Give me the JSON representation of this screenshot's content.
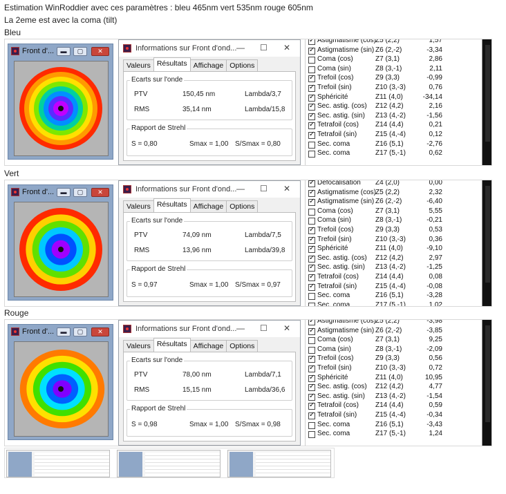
{
  "header": {
    "line1": "Estimation WinRoddier avec ces paramètres : bleu 465nm vert 535nm rouge 605nm",
    "line2": "La 2eme est avec la coma (tilt)"
  },
  "front_window_title": "Front d'...",
  "info_window": {
    "title": "Informations sur Front d'ond...",
    "tabs": [
      "Valeurs",
      "Résultats",
      "Affichage",
      "Options"
    ],
    "ecarts_label": "Ecarts sur l'onde",
    "strehl_label": "Rapport de Strehl",
    "ptv_label": "PTV",
    "rms_label": "RMS",
    "smax_text": "Smax = 1,00"
  },
  "colors": {
    "accent_title": "#8fa7c7",
    "close_red": "#c9463b",
    "list_bg": "#ffffff"
  },
  "panels": [
    {
      "label": "Bleu",
      "ptv_value": "150,45 nm",
      "ptv_lambda": "Lambda/3,7",
      "rms_value": "35,14 nm",
      "rms_lambda": "Lambda/15,8",
      "s_value": "S = 0,80",
      "s_ratio": "S/Smax = 0,80",
      "list": [
        {
          "name": "Astigmatisme (cos)",
          "z": "Z5 (2,2)",
          "value": "1,57",
          "checked": true
        },
        {
          "name": "Astigmatisme (sin)",
          "z": "Z6 (2,-2)",
          "value": "-3,34",
          "checked": true
        },
        {
          "name": "Coma (cos)",
          "z": "Z7 (3,1)",
          "value": "2,86",
          "checked": false
        },
        {
          "name": "Coma (sin)",
          "z": "Z8 (3,-1)",
          "value": "2,11",
          "checked": false
        },
        {
          "name": "Trefoil (cos)",
          "z": "Z9 (3,3)",
          "value": "-0,99",
          "checked": true
        },
        {
          "name": "Trefoil (sin)",
          "z": "Z10 (3,-3)",
          "value": "0,76",
          "checked": true
        },
        {
          "name": "Sphéricité",
          "z": "Z11 (4,0)",
          "value": "-34,14",
          "checked": true
        },
        {
          "name": "Sec. astig. (cos)",
          "z": "Z12 (4,2)",
          "value": "2,16",
          "checked": true
        },
        {
          "name": "Sec. astig. (sin)",
          "z": "Z13 (4,-2)",
          "value": "-1,56",
          "checked": true
        },
        {
          "name": "Tetrafoil (cos)",
          "z": "Z14 (4,4)",
          "value": "0,21",
          "checked": true
        },
        {
          "name": "Tetrafoil (sin)",
          "z": "Z15 (4,-4)",
          "value": "0,12",
          "checked": true
        },
        {
          "name": "Sec. coma",
          "z": "Z16 (5,1)",
          "value": "-2,76",
          "checked": false
        },
        {
          "name": "Sec. coma",
          "z": "Z17 (5,-1)",
          "value": "0,62",
          "checked": false
        }
      ]
    },
    {
      "label": "Vert",
      "ptv_value": "74,09 nm",
      "ptv_lambda": "Lambda/7,5",
      "rms_value": "13,96 nm",
      "rms_lambda": "Lambda/39,8",
      "s_value": "S = 0,97",
      "s_ratio": "S/Smax = 0,97",
      "list": [
        {
          "name": "Defocalisation",
          "z": "Z4 (2,0)",
          "value": "0,00",
          "checked": true
        },
        {
          "name": "Astigmatisme (cos)",
          "z": "Z5 (2,2)",
          "value": "2,32",
          "checked": true
        },
        {
          "name": "Astigmatisme (sin)",
          "z": "Z6 (2,-2)",
          "value": "-6,40",
          "checked": true
        },
        {
          "name": "Coma (cos)",
          "z": "Z7 (3,1)",
          "value": "5,55",
          "checked": false
        },
        {
          "name": "Coma (sin)",
          "z": "Z8 (3,-1)",
          "value": "-0,21",
          "checked": false
        },
        {
          "name": "Trefoil (cos)",
          "z": "Z9 (3,3)",
          "value": "0,53",
          "checked": true
        },
        {
          "name": "Trefoil (sin)",
          "z": "Z10 (3,-3)",
          "value": "0,36",
          "checked": true
        },
        {
          "name": "Sphéricité",
          "z": "Z11 (4,0)",
          "value": "-9,10",
          "checked": true
        },
        {
          "name": "Sec. astig. (cos)",
          "z": "Z12 (4,2)",
          "value": "2,97",
          "checked": true
        },
        {
          "name": "Sec. astig. (sin)",
          "z": "Z13 (4,-2)",
          "value": "-1,25",
          "checked": true
        },
        {
          "name": "Tetrafoil (cos)",
          "z": "Z14 (4,4)",
          "value": "0,08",
          "checked": true
        },
        {
          "name": "Tetrafoil (sin)",
          "z": "Z15 (4,-4)",
          "value": "-0,08",
          "checked": true
        },
        {
          "name": "Sec. coma",
          "z": "Z16 (5,1)",
          "value": "-3,28",
          "checked": false
        },
        {
          "name": "Sec. coma",
          "z": "Z17 (5,-1)",
          "value": "1,02",
          "checked": false
        }
      ]
    },
    {
      "label": "Rouge",
      "ptv_value": "78,00 nm",
      "ptv_lambda": "Lambda/7,1",
      "rms_value": "15,15 nm",
      "rms_lambda": "Lambda/36,6",
      "s_value": "S = 0,98",
      "s_ratio": "S/Smax = 0,98",
      "list": [
        {
          "name": "Astigmatisme (cos)",
          "z": "Z5 (2,2)",
          "value": "-3,98",
          "checked": true
        },
        {
          "name": "Astigmatisme (sin)",
          "z": "Z6 (2,-2)",
          "value": "-3,85",
          "checked": true
        },
        {
          "name": "Coma (cos)",
          "z": "Z7 (3,1)",
          "value": "9,25",
          "checked": false
        },
        {
          "name": "Coma (sin)",
          "z": "Z8 (3,-1)",
          "value": "-2,09",
          "checked": false
        },
        {
          "name": "Trefoil (cos)",
          "z": "Z9 (3,3)",
          "value": "0,56",
          "checked": true
        },
        {
          "name": "Trefoil (sin)",
          "z": "Z10 (3,-3)",
          "value": "0,72",
          "checked": true
        },
        {
          "name": "Sphéricité",
          "z": "Z11 (4,0)",
          "value": "10,95",
          "checked": true
        },
        {
          "name": "Sec. astig. (cos)",
          "z": "Z12 (4,2)",
          "value": "4,77",
          "checked": true
        },
        {
          "name": "Sec. astig. (sin)",
          "z": "Z13 (4,-2)",
          "value": "-1,54",
          "checked": true
        },
        {
          "name": "Tetrafoil (cos)",
          "z": "Z14 (4,4)",
          "value": "0,59",
          "checked": true
        },
        {
          "name": "Tetrafoil (sin)",
          "z": "Z15 (4,-4)",
          "value": "-0,34",
          "checked": true
        },
        {
          "name": "Sec. coma",
          "z": "Z16 (5,1)",
          "value": "-3,43",
          "checked": false
        },
        {
          "name": "Sec. coma",
          "z": "Z17 (5,-1)",
          "value": "1,24",
          "checked": false
        }
      ]
    }
  ]
}
